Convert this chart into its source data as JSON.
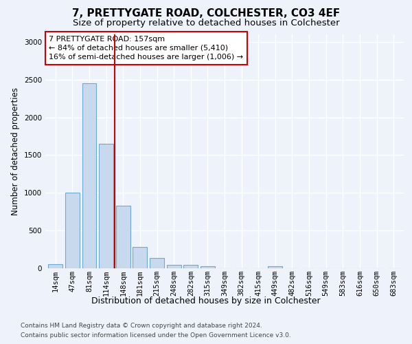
{
  "title1": "7, PRETTYGATE ROAD, COLCHESTER, CO3 4EF",
  "title2": "Size of property relative to detached houses in Colchester",
  "xlabel": "Distribution of detached houses by size in Colchester",
  "ylabel": "Number of detached properties",
  "categories": [
    "14sqm",
    "47sqm",
    "81sqm",
    "114sqm",
    "148sqm",
    "181sqm",
    "215sqm",
    "248sqm",
    "282sqm",
    "315sqm",
    "349sqm",
    "382sqm",
    "415sqm",
    "449sqm",
    "482sqm",
    "516sqm",
    "549sqm",
    "583sqm",
    "616sqm",
    "650sqm",
    "683sqm"
  ],
  "values": [
    55,
    1000,
    2450,
    1650,
    830,
    280,
    140,
    45,
    45,
    30,
    0,
    0,
    0,
    25,
    0,
    0,
    0,
    0,
    0,
    0,
    0
  ],
  "bar_color": "#c8d9ee",
  "bar_edgecolor": "#6aaad4",
  "property_line_x": 3.5,
  "property_line_color": "#cc0000",
  "annotation_line1": "7 PRETTYGATE ROAD: 157sqm",
  "annotation_line2": "← 84% of detached houses are smaller (5,410)",
  "annotation_line3": "16% of semi-detached houses are larger (1,006) →",
  "annotation_box_color": "#ffffff",
  "annotation_box_edgecolor": "#cc0000",
  "ylim": [
    0,
    3100
  ],
  "yticks": [
    0,
    500,
    1000,
    1500,
    2000,
    2500,
    3000
  ],
  "footnote1": "Contains HM Land Registry data © Crown copyright and database right 2024.",
  "footnote2": "Contains public sector information licensed under the Open Government Licence v3.0.",
  "background_color": "#eef2fa",
  "grid_color": "#ffffff",
  "title1_fontsize": 11,
  "title2_fontsize": 9.5,
  "xlabel_fontsize": 9,
  "ylabel_fontsize": 8.5,
  "tick_fontsize": 7.5,
  "annotation_fontsize": 8,
  "footnote_fontsize": 6.5
}
